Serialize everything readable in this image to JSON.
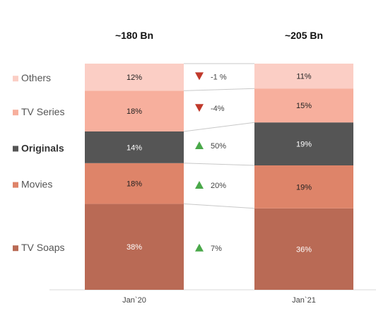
{
  "chart_data": {
    "type": "bar",
    "stacked": true,
    "categories": [
      "Jan`20",
      "Jan`21"
    ],
    "totals": [
      "~180 Bn",
      "~205 Bn"
    ],
    "series": [
      {
        "name": "TV Soaps",
        "values": [
          38,
          36
        ],
        "labels": [
          "38%",
          "36%"
        ],
        "color": "#b96a55",
        "label_color": "#ffffff",
        "change": "7%",
        "direction": "up"
      },
      {
        "name": "Movies",
        "values": [
          18,
          19
        ],
        "labels": [
          "18%",
          "19%"
        ],
        "color": "#de8469",
        "label_color": "#222222",
        "change": "20%",
        "direction": "up"
      },
      {
        "name": "Originals",
        "values": [
          14,
          19
        ],
        "labels": [
          "14%",
          "19%"
        ],
        "color": "#555555",
        "label_color": "#ffffff",
        "change": "50%",
        "direction": "up",
        "emphasis": true
      },
      {
        "name": "TV Series",
        "values": [
          18,
          15
        ],
        "labels": [
          "18%",
          "15%"
        ],
        "color": "#f7af9d",
        "label_color": "#222222",
        "change": "-4%",
        "direction": "down"
      },
      {
        "name": "Others",
        "values": [
          12,
          11
        ],
        "labels": [
          "12%",
          "11%"
        ],
        "color": "#fbcec5",
        "label_color": "#222222",
        "change": "-1 %",
        "direction": "down"
      }
    ],
    "ylim": [
      0,
      100
    ],
    "up_color": "#4aa84a",
    "down_color": "#c0392b",
    "legend_position": "left",
    "grid": false
  }
}
